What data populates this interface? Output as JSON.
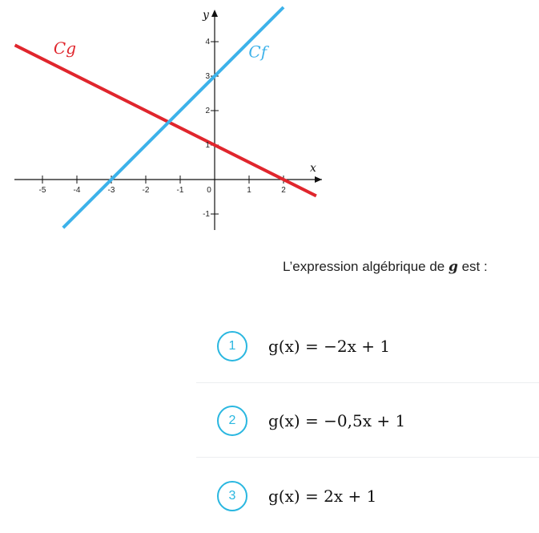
{
  "graph": {
    "x_axis_label": "x",
    "y_axis_label": "y",
    "x_ticks": [
      "-5",
      "-4",
      "-3",
      "-2",
      "-1",
      "0",
      "1",
      "2"
    ],
    "y_ticks": [
      "-1",
      "1",
      "2",
      "3",
      "4"
    ],
    "curves": [
      {
        "label": "Cg",
        "color": "#e0262d",
        "slope": -0.5,
        "intercept": 1
      },
      {
        "label": "Cf",
        "color": "#3db2ea",
        "slope": 1,
        "intercept": 3
      }
    ]
  },
  "question": {
    "prefix": "L’expression algébrique de ",
    "variable": "g",
    "suffix": " est :"
  },
  "options": [
    {
      "number": "1",
      "formula": "g(x) = −2x + 1"
    },
    {
      "number": "2",
      "formula": "g(x) = −0,5x + 1"
    },
    {
      "number": "3",
      "formula": "g(x) = 2x + 1"
    }
  ],
  "accent_color": "#2ab7e0"
}
